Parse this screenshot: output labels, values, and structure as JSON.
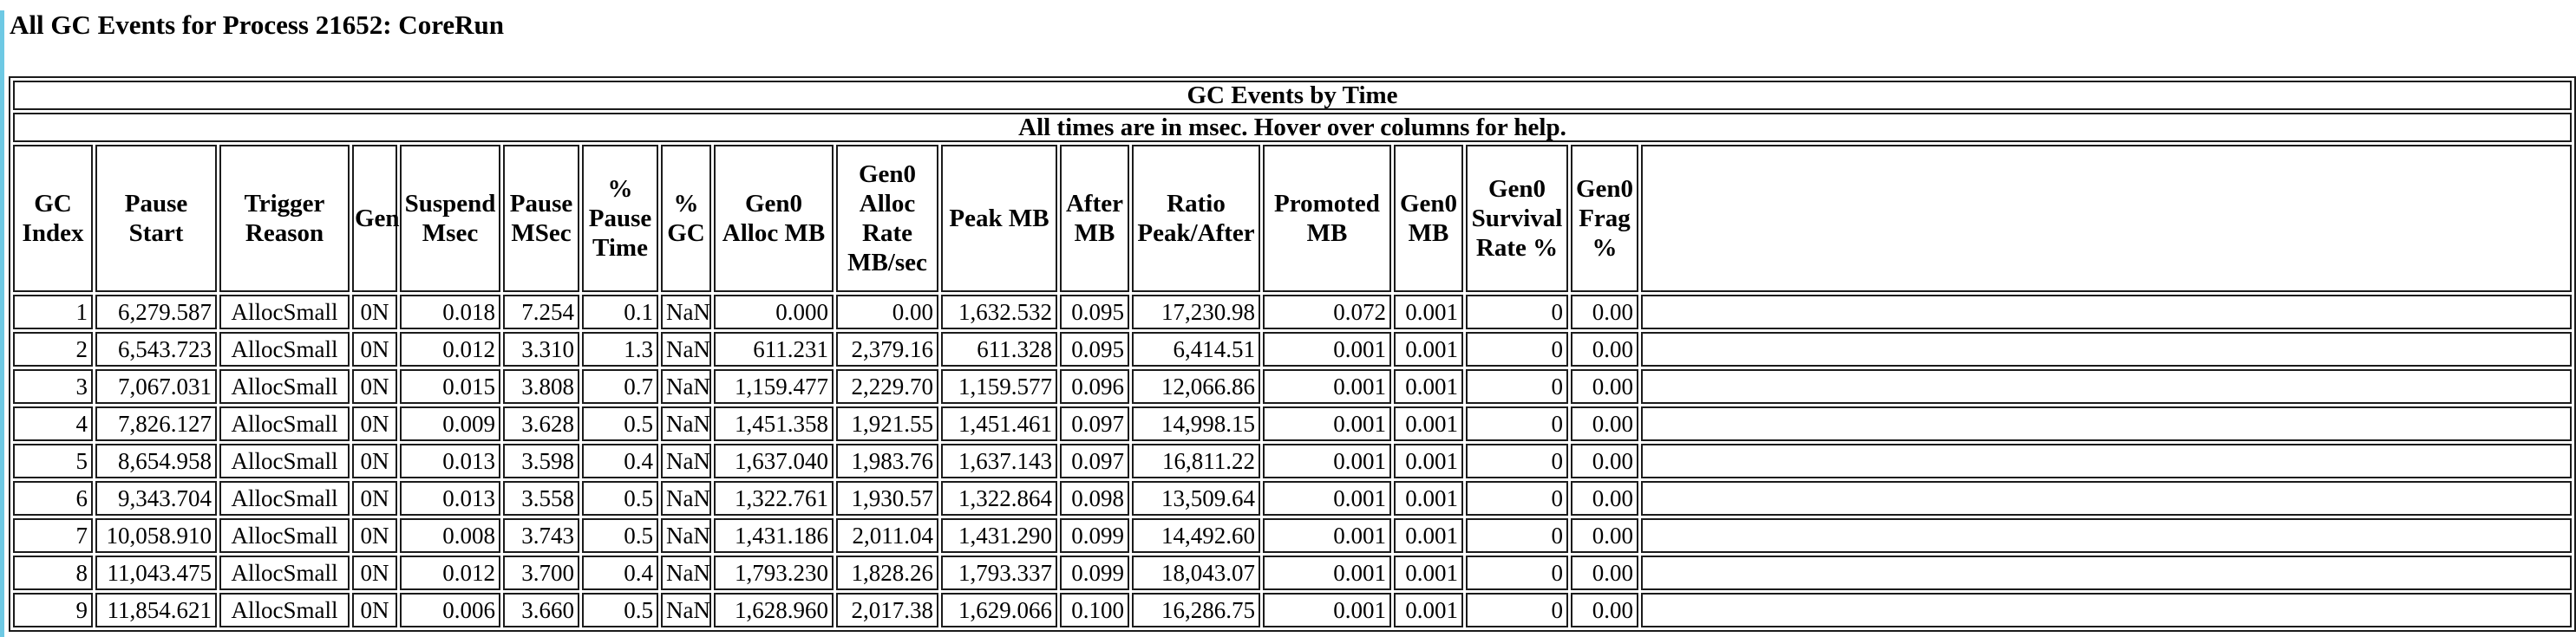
{
  "page": {
    "title": "All GC Events for Process 21652: CoreRun"
  },
  "table": {
    "banner_title": "GC Events by Time",
    "banner_subtitle": "All times are in msec. Hover over columns for help.",
    "columns": [
      "GC Index",
      "Pause Start",
      "Trigger Reason",
      "Gen",
      "Suspend Msec",
      "Pause MSec",
      "% Pause Time",
      "% GC",
      "Gen0 Alloc MB",
      "Gen0 Alloc Rate MB/sec",
      "Peak MB",
      "After MB",
      "Ratio Peak/After",
      "Promoted MB",
      "Gen0 MB",
      "Gen0 Survival Rate %",
      "Gen0 Frag %"
    ],
    "rows": [
      [
        "1",
        "6,279.587",
        "AllocSmall",
        "0N",
        "0.018",
        "7.254",
        "0.1",
        "NaN",
        "0.000",
        "0.00",
        "1,632.532",
        "0.095",
        "17,230.98",
        "0.072",
        "0.001",
        "0",
        "0.00"
      ],
      [
        "2",
        "6,543.723",
        "AllocSmall",
        "0N",
        "0.012",
        "3.310",
        "1.3",
        "NaN",
        "611.231",
        "2,379.16",
        "611.328",
        "0.095",
        "6,414.51",
        "0.001",
        "0.001",
        "0",
        "0.00"
      ],
      [
        "3",
        "7,067.031",
        "AllocSmall",
        "0N",
        "0.015",
        "3.808",
        "0.7",
        "NaN",
        "1,159.477",
        "2,229.70",
        "1,159.577",
        "0.096",
        "12,066.86",
        "0.001",
        "0.001",
        "0",
        "0.00"
      ],
      [
        "4",
        "7,826.127",
        "AllocSmall",
        "0N",
        "0.009",
        "3.628",
        "0.5",
        "NaN",
        "1,451.358",
        "1,921.55",
        "1,451.461",
        "0.097",
        "14,998.15",
        "0.001",
        "0.001",
        "0",
        "0.00"
      ],
      [
        "5",
        "8,654.958",
        "AllocSmall",
        "0N",
        "0.013",
        "3.598",
        "0.4",
        "NaN",
        "1,637.040",
        "1,983.76",
        "1,637.143",
        "0.097",
        "16,811.22",
        "0.001",
        "0.001",
        "0",
        "0.00"
      ],
      [
        "6",
        "9,343.704",
        "AllocSmall",
        "0N",
        "0.013",
        "3.558",
        "0.5",
        "NaN",
        "1,322.761",
        "1,930.57",
        "1,322.864",
        "0.098",
        "13,509.64",
        "0.001",
        "0.001",
        "0",
        "0.00"
      ],
      [
        "7",
        "10,058.910",
        "AllocSmall",
        "0N",
        "0.008",
        "3.743",
        "0.5",
        "NaN",
        "1,431.186",
        "2,011.04",
        "1,431.290",
        "0.099",
        "14,492.60",
        "0.001",
        "0.001",
        "0",
        "0.00"
      ],
      [
        "8",
        "11,043.475",
        "AllocSmall",
        "0N",
        "0.012",
        "3.700",
        "0.4",
        "NaN",
        "1,793.230",
        "1,828.26",
        "1,793.337",
        "0.099",
        "18,043.07",
        "0.001",
        "0.001",
        "0",
        "0.00"
      ],
      [
        "9",
        "11,854.621",
        "AllocSmall",
        "0N",
        "0.006",
        "3.660",
        "0.5",
        "NaN",
        "1,628.960",
        "2,017.38",
        "1,629.066",
        "0.100",
        "16,286.75",
        "0.001",
        "0.001",
        "0",
        "0.00"
      ]
    ]
  },
  "colors": {
    "accent_strip": "#6EC9E4",
    "table_border": "#1B1B1B",
    "text": "#000000",
    "background": "#FFFFFF"
  }
}
